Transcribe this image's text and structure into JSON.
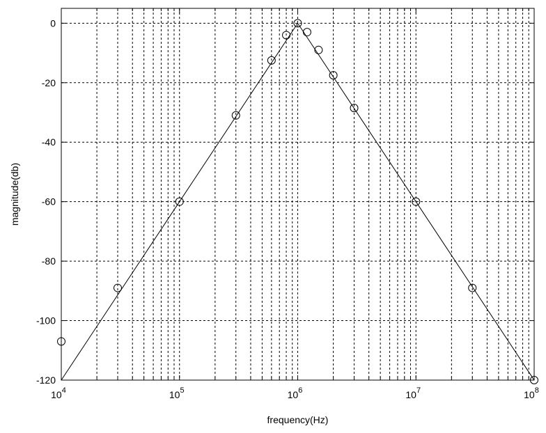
{
  "chart_data": {
    "type": "line",
    "xlabel": "frequency(Hz)",
    "ylabel": "magnitude(db)",
    "x_scale": "log",
    "xlim": [
      10000,
      100000000
    ],
    "ylim": [
      -120,
      5
    ],
    "grid": true,
    "x_ticks": [
      {
        "value": 10000,
        "base": "10",
        "exp": "4"
      },
      {
        "value": 100000,
        "base": "10",
        "exp": "5"
      },
      {
        "value": 1000000,
        "base": "10",
        "exp": "6"
      },
      {
        "value": 10000000,
        "base": "10",
        "exp": "7"
      },
      {
        "value": 100000000,
        "base": "10",
        "exp": "8"
      }
    ],
    "y_ticks": [
      0,
      -20,
      -40,
      -60,
      -80,
      -100,
      -120
    ],
    "series": [
      {
        "style": "line",
        "x": [
          10000,
          1000000,
          100000000
        ],
        "y": [
          -120,
          0,
          -120
        ]
      },
      {
        "style": "markers",
        "marker": "circle",
        "x": [
          10000,
          30000,
          100000,
          300000,
          600000,
          800000,
          1000000,
          1200000,
          1500000,
          2000000,
          3000000,
          10000000,
          30000000,
          100000000
        ],
        "y": [
          -107,
          -89,
          -60,
          -31,
          -12.5,
          -4,
          0,
          -3,
          -9,
          -17.5,
          -28.5,
          -60,
          -89,
          -120
        ]
      }
    ]
  }
}
